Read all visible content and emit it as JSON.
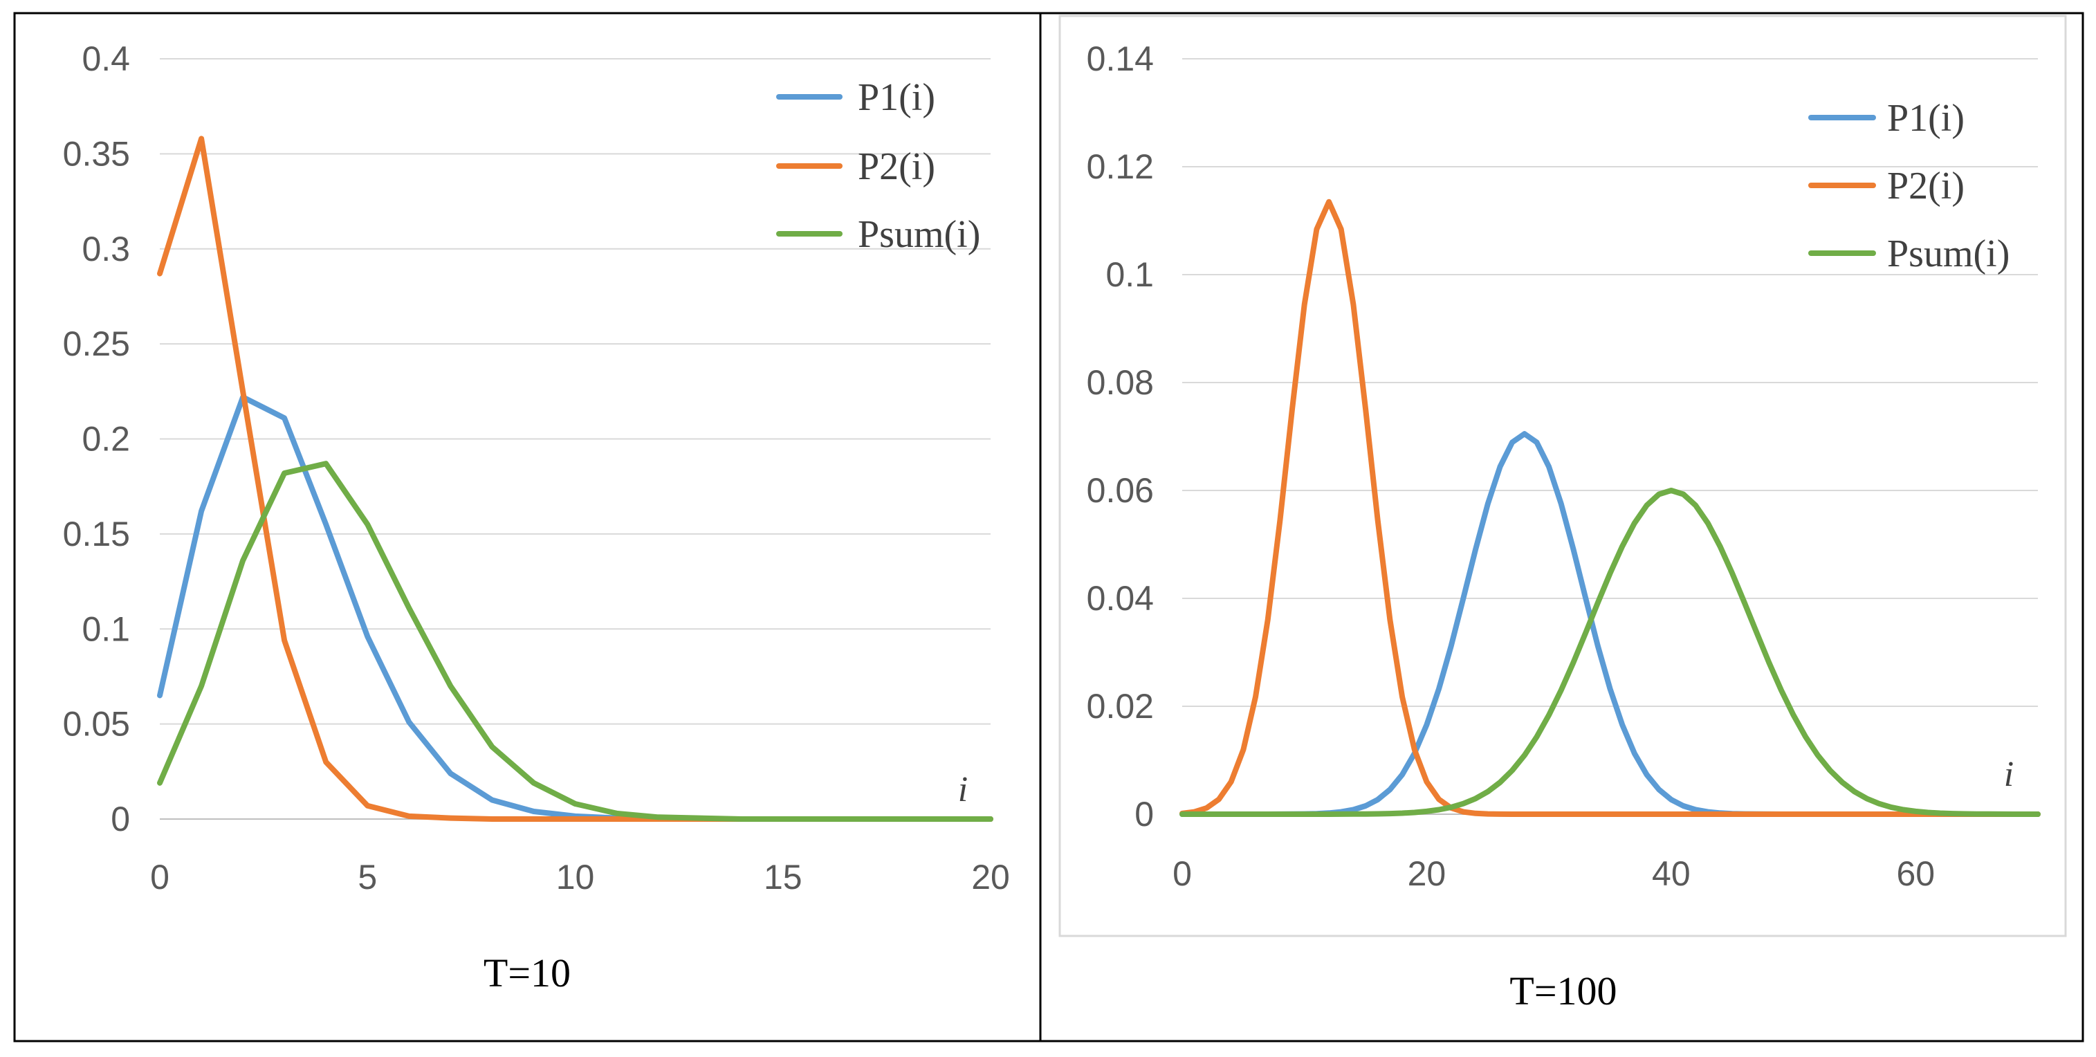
{
  "chart_data": [
    {
      "type": "line",
      "title": "T=10",
      "xlabel": "i",
      "ylabel": "",
      "xlim": [
        0,
        20
      ],
      "ylim": [
        0,
        0.4
      ],
      "xticks": [
        "0",
        "5",
        "10",
        "15",
        "20"
      ],
      "yticks": [
        "0",
        "0.05",
        "0.1",
        "0.15",
        "0.2",
        "0.25",
        "0.3",
        "0.35",
        "0.4"
      ],
      "grid": true,
      "legend": "top-right",
      "x": [
        0,
        1,
        2,
        3,
        4,
        5,
        6,
        7,
        8,
        9,
        10,
        11,
        12,
        13,
        14,
        15,
        16,
        17,
        18,
        19,
        20
      ],
      "series": [
        {
          "name": "P1(i)",
          "color": "#5b9bd5",
          "values": [
            0.065,
            0.162,
            0.222,
            0.211,
            0.155,
            0.096,
            0.051,
            0.024,
            0.01,
            0.004,
            0.0015,
            0.0005,
            0,
            0,
            0,
            0,
            0,
            0,
            0,
            0,
            0
          ]
        },
        {
          "name": "P2(i)",
          "color": "#ed7d31",
          "values": [
            0.287,
            0.358,
            0.225,
            0.094,
            0.03,
            0.007,
            0.0015,
            0.0005,
            0,
            0,
            0,
            0,
            0,
            0,
            0,
            0,
            0,
            0,
            0,
            0,
            0
          ]
        },
        {
          "name": "Psum(i)",
          "color": "#70ad47",
          "values": [
            0.019,
            0.07,
            0.136,
            0.182,
            0.187,
            0.155,
            0.111,
            0.07,
            0.038,
            0.019,
            0.008,
            0.003,
            0.001,
            0.0005,
            0,
            0,
            0,
            0,
            0,
            0,
            0
          ]
        }
      ]
    },
    {
      "type": "line",
      "title": "T=100",
      "xlabel": "i",
      "ylabel": "",
      "xlim": [
        0,
        70
      ],
      "ylim": [
        0,
        0.14
      ],
      "xticks": [
        "0",
        "20",
        "40",
        "60"
      ],
      "yticks": [
        "0",
        "0.02",
        "0.04",
        "0.06",
        "0.08",
        "0.1",
        "0.12",
        "0.14"
      ],
      "grid": true,
      "legend": "top-right",
      "series": [
        {
          "name": "P1(i)",
          "color": "#5b9bd5",
          "dist": "gaussian",
          "peak": 0.0705,
          "mean": 28,
          "sd": 4.7
        },
        {
          "name": "P2(i)",
          "color": "#ed7d31",
          "dist": "gaussian",
          "peak": 0.1135,
          "mean": 12,
          "sd": 3.3
        },
        {
          "name": "Psum(i)",
          "color": "#70ad47",
          "dist": "gaussian",
          "peak": 0.06,
          "mean": 40,
          "sd": 6.5
        }
      ]
    }
  ]
}
